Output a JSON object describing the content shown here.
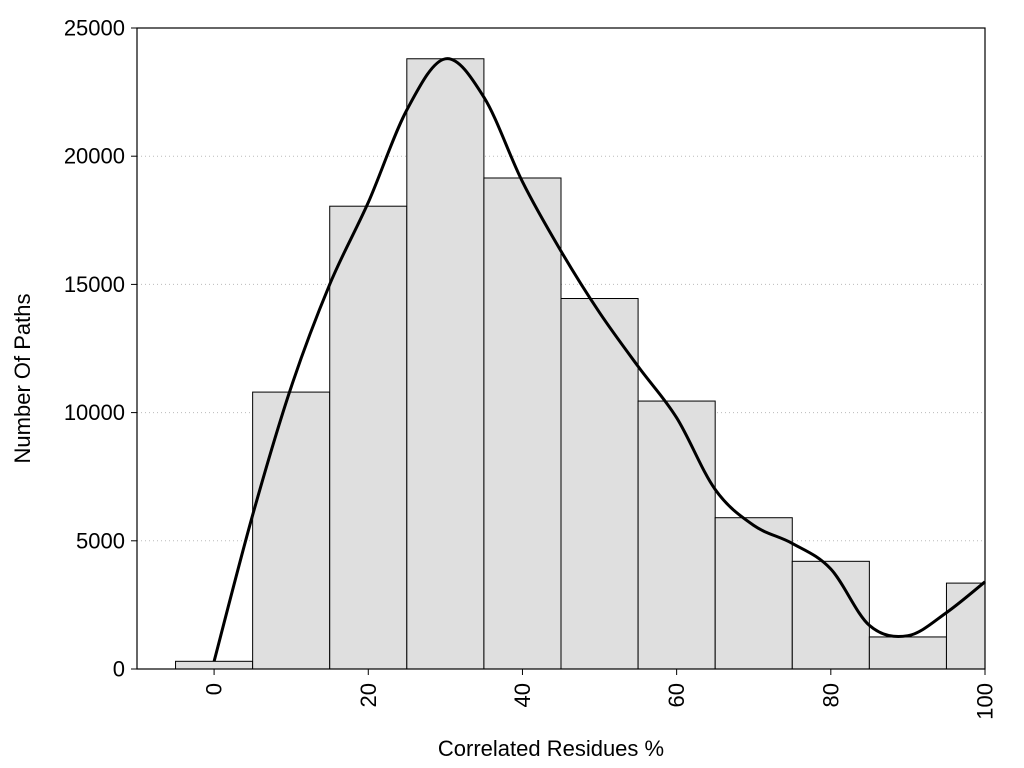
{
  "chart_data": {
    "type": "bar",
    "title": "",
    "xlabel": "Correlated Residues %",
    "ylabel": "Number Of Paths",
    "xlim": [
      -10,
      100
    ],
    "ylim": [
      0,
      25000
    ],
    "grid": "horizontal-dotted",
    "legend": "none",
    "x_ticks": [
      0,
      20,
      40,
      60,
      80,
      100
    ],
    "x_tick_labels": [
      "0",
      "20",
      "40",
      "60",
      "80",
      "100"
    ],
    "y_ticks": [
      0,
      5000,
      10000,
      15000,
      20000,
      25000
    ],
    "y_tick_labels": [
      "0",
      "5000",
      "10000",
      "15000",
      "20000",
      "25000"
    ],
    "bin_width": 10,
    "categories": [
      0,
      10,
      20,
      30,
      40,
      50,
      60,
      70,
      80,
      90,
      100
    ],
    "values": [
      300,
      10800,
      18050,
      23800,
      19150,
      14450,
      10450,
      5900,
      4200,
      1250,
      3350
    ],
    "series": [
      {
        "type": "line",
        "x": [
          0,
          5,
          10,
          15,
          20,
          25,
          30,
          35,
          40,
          45,
          50,
          55,
          60,
          65,
          70,
          75,
          80,
          85,
          90,
          95,
          100
        ],
        "y": [
          300,
          6000,
          11000,
          15000,
          18200,
          21800,
          23800,
          22300,
          19000,
          16300,
          13900,
          11800,
          9800,
          7000,
          5600,
          4900,
          3900,
          1700,
          1300,
          2200,
          3400
        ]
      }
    ],
    "colors": {
      "bar_fill": "#dfdfdf",
      "bar_stroke": "#000000",
      "line": "#000000",
      "grid": "#bbbbbb"
    }
  }
}
